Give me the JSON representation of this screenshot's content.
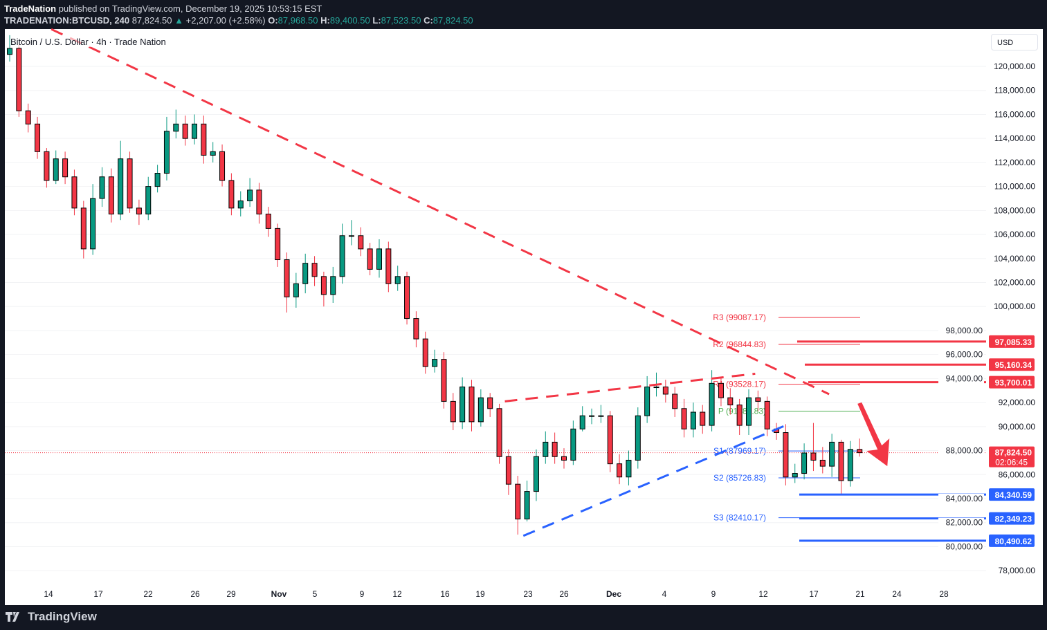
{
  "header": {
    "publisher": "TradeNation",
    "published_text": "published on TradingView.com, December 19, 2025 10:53:15 EST",
    "symbol": "TRADENATION:BTCUSD, 240",
    "last": "87,824.50",
    "change": "+2,207.00 (+2.58%)",
    "o_label": "O:",
    "o": "87,968.50",
    "h_label": "H:",
    "h": "89,400.50",
    "l_label": "L:",
    "l": "87,523.50",
    "c_label": "C:",
    "c": "87,824.50"
  },
  "chart_title": "Bitcoin / U.S. Dollar · 4h · Trade Nation",
  "currency_button": "USD",
  "footer_logo": "TradingView",
  "colors": {
    "up": "#089981",
    "down": "#f23645",
    "resistance": "#f23645",
    "support": "#2962ff",
    "pivot": "#4caf50",
    "background": "#ffffff",
    "frame": "#131722"
  },
  "chart_data": {
    "type": "candlestick",
    "timeframe": "4h",
    "ylim": [
      78000,
      120000
    ],
    "y_ticks": [
      "120,000.00",
      "118,000.00",
      "116,000.00",
      "114,000.00",
      "112,000.00",
      "110,000.00",
      "108,000.00",
      "106,000.00",
      "104,000.00",
      "102,000.00",
      "100,000.00",
      "98,000.00",
      "96,000.00",
      "94,000.00",
      "92,000.00",
      "90,000.00",
      "88,000.00",
      "86,000.00",
      "84,000.00",
      "82,000.00",
      "80,000.00",
      "78,000.00"
    ],
    "x_ticks": [
      "14",
      "17",
      "22",
      "26",
      "29",
      "Nov",
      "5",
      "9",
      "12",
      "16",
      "19",
      "23",
      "26",
      "Dec",
      "4",
      "9",
      "12",
      "17",
      "21",
      "24",
      "28"
    ],
    "first_open": 121000,
    "close": [
      121500,
      116300,
      115200,
      112900,
      110500,
      112300,
      110800,
      108200,
      104800,
      109000,
      110800,
      107700,
      112300,
      108200,
      107700,
      110000,
      111100,
      114600,
      115200,
      114000,
      115200,
      112600,
      112900,
      110500,
      108200,
      108800,
      109700,
      107700,
      106500,
      103900,
      100800,
      101900,
      103600,
      102500,
      101000,
      102500,
      105900,
      105900,
      104800,
      103100,
      104800,
      101900,
      102500,
      99000,
      97300,
      95000,
      95600,
      92100,
      90400,
      93300,
      90400,
      92400,
      91500,
      87500,
      85200,
      82300,
      84600,
      87500,
      88700,
      87500,
      87200,
      89800,
      90900,
      90900,
      90900,
      86900,
      85800,
      87200,
      90900,
      93300,
      93300,
      92700,
      91500,
      89800,
      91200,
      90100,
      93600,
      92400,
      91800,
      90100,
      92400,
      92100,
      89800,
      89500,
      85800,
      86100,
      87800,
      87200,
      86700,
      88700,
      85500,
      88100,
      87824.5
    ],
    "high": [
      122600,
      121800,
      116900,
      115800,
      113200,
      113000,
      112900,
      111400,
      108800,
      110200,
      111600,
      111500,
      113800,
      112900,
      108900,
      110800,
      111800,
      115800,
      116400,
      115900,
      116000,
      115900,
      113700,
      113500,
      111100,
      109600,
      110700,
      110300,
      108300,
      106900,
      104500,
      102800,
      104400,
      104200,
      102900,
      103300,
      106900,
      107200,
      106600,
      105300,
      105600,
      105400,
      103400,
      102900,
      99600,
      97900,
      96400,
      96200,
      92800,
      94100,
      93900,
      93100,
      92800,
      91900,
      88100,
      85900,
      85500,
      88100,
      89600,
      89500,
      88200,
      90500,
      91700,
      91500,
      91800,
      91300,
      87700,
      88000,
      91600,
      94200,
      94500,
      93900,
      93300,
      92300,
      92000,
      91800,
      94700,
      94100,
      93200,
      92300,
      93100,
      93000,
      92500,
      90300,
      90200,
      86900,
      88600,
      90300,
      88300,
      89400,
      88900,
      88800,
      89000
    ],
    "low": [
      120400,
      115800,
      114500,
      112300,
      109900,
      110200,
      110200,
      107600,
      104000,
      104300,
      108300,
      107000,
      107200,
      107800,
      106800,
      107200,
      109500,
      110500,
      114000,
      113400,
      113500,
      111900,
      112000,
      110000,
      107600,
      107500,
      108300,
      106900,
      105800,
      103300,
      99500,
      99900,
      101100,
      101700,
      100000,
      100300,
      101900,
      105100,
      104200,
      102600,
      102400,
      101200,
      101300,
      98500,
      96600,
      94400,
      94500,
      91500,
      89700,
      89800,
      89600,
      90000,
      90800,
      86900,
      84300,
      81000,
      82100,
      83800,
      86900,
      86900,
      86500,
      86800,
      89600,
      90200,
      90300,
      86200,
      85200,
      85100,
      86500,
      90300,
      92500,
      92000,
      90800,
      89100,
      89100,
      89400,
      89600,
      91700,
      91000,
      89300,
      89300,
      91300,
      89200,
      88900,
      85100,
      85300,
      85600,
      86300,
      86100,
      85800,
      84340,
      85000,
      87500
    ],
    "current_price": {
      "value": 87824.5,
      "label": "87,824.50",
      "countdown": "02:06:45"
    },
    "pivots": [
      {
        "label": "R3 (99087.17)",
        "value": 99087.17,
        "kind": "resistance"
      },
      {
        "label": "R2 (96844.83)",
        "value": 96844.83,
        "kind": "resistance"
      },
      {
        "label": "R1 (93528.17)",
        "value": 93528.17,
        "kind": "resistance"
      },
      {
        "label": "P (91285.83)",
        "value": 91285.83,
        "kind": "pivot"
      },
      {
        "label": "S1 (87969.17)",
        "value": 87969.17,
        "kind": "support"
      },
      {
        "label": "S2 (85726.83)",
        "value": 85726.83,
        "kind": "support"
      },
      {
        "label": "S3 (82410.17)",
        "value": 82410.17,
        "kind": "support"
      }
    ],
    "levels": [
      {
        "label": "97,085.33",
        "value": 97085.33,
        "kind": "resistance"
      },
      {
        "label": "95,160.34",
        "value": 95160.34,
        "kind": "resistance"
      },
      {
        "label": "93,700.01",
        "value": 93700.01,
        "kind": "resistance"
      },
      {
        "label": "84,340.59",
        "value": 84340.59,
        "kind": "support"
      },
      {
        "label": "82,349.23",
        "value": 82349.23,
        "kind": "support"
      },
      {
        "label": "80,490.62",
        "value": 80490.62,
        "kind": "support"
      }
    ],
    "trendlines": [
      {
        "kind": "resistance",
        "style": "dashed",
        "from": {
          "bar": 4.5,
          "price": 123100
        },
        "to": {
          "bar": 88.7,
          "price": 92700
        }
      },
      {
        "kind": "resistance",
        "style": "dashed",
        "from": {
          "bar": 53.6,
          "price": 92100
        },
        "to": {
          "bar": 80.7,
          "price": 94400
        }
      },
      {
        "kind": "support",
        "style": "dashed",
        "from": {
          "bar": 55.6,
          "price": 80900
        },
        "to": {
          "bar": 84.0,
          "price": 90100
        }
      }
    ],
    "projection_arrow": {
      "direction": "down",
      "from": {
        "bar": 92,
        "price": 91900
      },
      "to": {
        "bar": 95,
        "price": 86700
      }
    }
  }
}
